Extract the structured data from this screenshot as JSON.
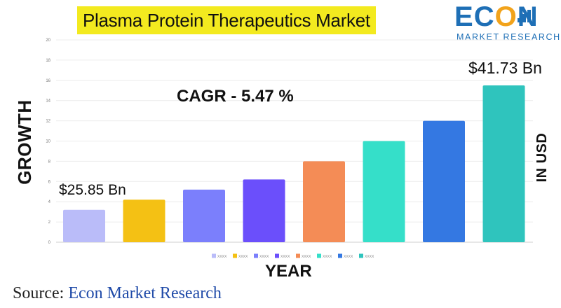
{
  "title": "Plasma Protein Therapeutics Market",
  "logo": {
    "main": "ECON",
    "sub": "MARKET RESEARCH"
  },
  "annotations": {
    "cagr": "CAGR  - 5.47 %",
    "first_value": "$25.85 Bn",
    "last_value": "$41.73 Bn"
  },
  "source": {
    "prefix": "Source:",
    "name": "Econ Market Research"
  },
  "colors": {
    "title_highlight": "#f3ea1f",
    "logo_blue": "#1e6fb6",
    "logo_orange": "#f2a31b"
  },
  "chart_data": {
    "type": "bar",
    "xlabel": "YEAR",
    "ylabel": "GROWTH",
    "ylabel_right": "IN USD",
    "ylim": [
      0,
      20
    ],
    "yticks": [
      0,
      2,
      4,
      6,
      8,
      10,
      12,
      14,
      16,
      18,
      20
    ],
    "grid": true,
    "legend_position": "bottom",
    "categories": [
      "XXXX",
      "XXXX",
      "XXXX",
      "XXXX",
      "XXXX",
      "XXXX",
      "XXXX",
      "XXXX"
    ],
    "values": [
      3.2,
      4.2,
      5.2,
      6.2,
      8.0,
      10.0,
      12.0,
      15.5
    ],
    "bar_colors": [
      "#babcf9",
      "#f4c114",
      "#7b7ffc",
      "#6b4ffb",
      "#f48c56",
      "#35dfc9",
      "#3478e2",
      "#2fc4bd"
    ]
  }
}
